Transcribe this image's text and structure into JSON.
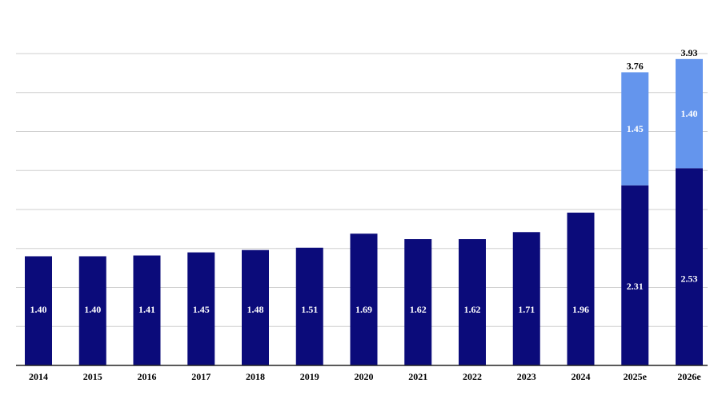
{
  "chart_data": {
    "type": "bar",
    "stacked": true,
    "categories": [
      "2014",
      "2015",
      "2016",
      "2017",
      "2018",
      "2019",
      "2020",
      "2021",
      "2022",
      "2023",
      "2024",
      "2025e",
      "2026e"
    ],
    "series": [
      {
        "values": [
          1.4,
          1.4,
          1.41,
          1.45,
          1.48,
          1.51,
          1.69,
          1.62,
          1.62,
          1.71,
          1.96,
          2.31,
          2.53
        ],
        "labels": [
          "1.40",
          "1.40",
          "1.41",
          "1.45",
          "1.48",
          "1.51",
          "1.69",
          "1.62",
          "1.62",
          "1.71",
          "1.96",
          "2.31",
          "2.53"
        ],
        "color": "#0b0b7a"
      },
      {
        "values": [
          0,
          0,
          0,
          0,
          0,
          0,
          0,
          0,
          0,
          0,
          0,
          1.45,
          1.4
        ],
        "labels": [
          "",
          "",
          "",
          "",
          "",
          "",
          "",
          "",
          "",
          "",
          "",
          "1.45",
          "1.40"
        ],
        "color": "#6495ed"
      }
    ],
    "totals": [
      "",
      "",
      "",
      "",
      "",
      "",
      "",
      "",
      "",
      "",
      "",
      "3.76",
      "3.93"
    ],
    "ylim": [
      0,
      4.0
    ],
    "grid": true,
    "legend": "none",
    "colors": {
      "grid": "#cfcfcf",
      "axis": "#222222",
      "inner_label": "#ffffff",
      "outer_label": "#000000"
    }
  }
}
